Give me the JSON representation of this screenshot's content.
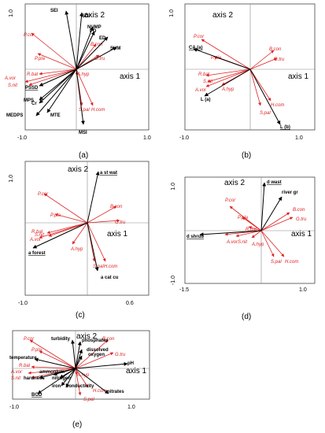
{
  "axis_labels": {
    "axis1": "axis 1",
    "axis2": "axis 2"
  },
  "panels": [
    {
      "id": "a",
      "caption": "(a)",
      "ticks": {
        "left": "-1.0",
        "right": "1.0",
        "top": "1.0"
      },
      "black": [
        {
          "label": "SEI"
        },
        {
          "label": "SDI"
        },
        {
          "label": "NUMP"
        },
        {
          "label": "PD"
        },
        {
          "label": "ED"
        },
        {
          "label": "SUM"
        },
        {
          "label": "PSSD",
          "underline": true
        },
        {
          "label": "MPS"
        },
        {
          "label": "Cr"
        },
        {
          "label": "MEDPS"
        },
        {
          "label": "MTE"
        },
        {
          "label": "MSI"
        }
      ],
      "red": [
        {
          "label": "P.cor"
        },
        {
          "label": "P.pla"
        },
        {
          "label": "B.con"
        },
        {
          "label": "G.tru"
        },
        {
          "label": "R.bal"
        },
        {
          "label": "A.vor"
        },
        {
          "label": "S.nit"
        },
        {
          "label": "A.hyp"
        },
        {
          "label": "S.pal"
        },
        {
          "label": "H.com"
        }
      ]
    },
    {
      "id": "b",
      "caption": "(b)",
      "ticks": {
        "left": "-1.0",
        "right": "1.0",
        "top": "1.0"
      },
      "black": [
        {
          "label": "CA (a)",
          "underline": true
        },
        {
          "label": "L (a)"
        },
        {
          "label": "L (b)",
          "underline": true
        }
      ],
      "red": [
        {
          "label": "P.cor"
        },
        {
          "label": "P.pla"
        },
        {
          "label": "B.con"
        },
        {
          "label": "G.tru"
        },
        {
          "label": "R.bal"
        },
        {
          "label": "S.nit"
        },
        {
          "label": "A.vor"
        },
        {
          "label": "A.hyp"
        },
        {
          "label": "S.pal"
        },
        {
          "label": "H.com"
        }
      ]
    },
    {
      "id": "c",
      "caption": "(c)",
      "ticks": {
        "left": "-1.0",
        "right": "0.6",
        "top": "1.0"
      },
      "black": [
        {
          "label": "a st wat",
          "underline": true
        },
        {
          "label": "a forest",
          "underline": true
        },
        {
          "label": "a cat cu"
        }
      ],
      "red": [
        {
          "label": "P.cor"
        },
        {
          "label": "P.pla"
        },
        {
          "label": "B.con"
        },
        {
          "label": "G.tru"
        },
        {
          "label": "R.bal"
        },
        {
          "label": "S.nit"
        },
        {
          "label": "A.vor"
        },
        {
          "label": "A.hyp"
        },
        {
          "label": "S.pal"
        },
        {
          "label": "H.com"
        }
      ]
    },
    {
      "id": "d",
      "caption": "(d)",
      "ticks": {
        "left": "-1.5",
        "right": "1.0",
        "top": "1.0",
        "bottom": "-1.0"
      },
      "black": [
        {
          "label": "d wast",
          "underline": true
        },
        {
          "label": "river gr"
        },
        {
          "label": "d shrub",
          "underline": true
        }
      ],
      "red": [
        {
          "label": "P.cor"
        },
        {
          "label": "P.pla"
        },
        {
          "label": "B.con"
        },
        {
          "label": "G.tru"
        },
        {
          "label": "R.bal"
        },
        {
          "label": "A.vor"
        },
        {
          "label": "S.nit"
        },
        {
          "label": "A.hyp"
        },
        {
          "label": "S.pal"
        },
        {
          "label": "H.com"
        }
      ]
    },
    {
      "id": "e",
      "caption": "(e)",
      "ticks": {
        "left": "-1.0",
        "right": "1.0"
      },
      "black": [
        {
          "label": "turbidity"
        },
        {
          "label": "phosphates"
        },
        {
          "label": "dissolved"
        },
        {
          "label": "oxygen"
        },
        {
          "label": "temperature"
        },
        {
          "label": "ammonium"
        },
        {
          "label": "hardness"
        },
        {
          "label": "nitrogen"
        },
        {
          "label": "iron"
        },
        {
          "label": "conductivity"
        },
        {
          "label": "BOD",
          "underline": true
        },
        {
          "label": "pH"
        },
        {
          "label": "nitrates"
        }
      ],
      "red": [
        {
          "label": "P.cor"
        },
        {
          "label": "P.pla"
        },
        {
          "label": "B.con"
        },
        {
          "label": "G.tru"
        },
        {
          "label": "R.bal"
        },
        {
          "label": "A.vor"
        },
        {
          "label": "S.nit"
        },
        {
          "label": "A.hyp"
        },
        {
          "label": "H.com"
        },
        {
          "label": "S.pal"
        }
      ]
    }
  ]
}
